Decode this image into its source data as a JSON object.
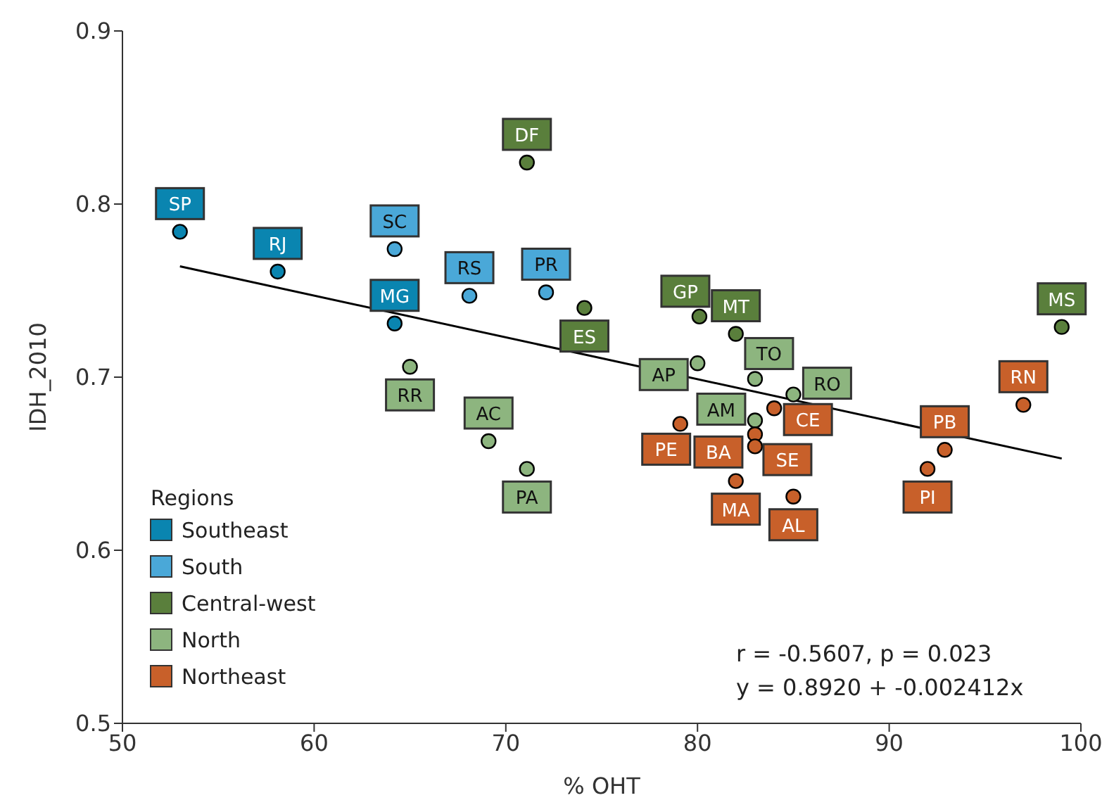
{
  "chart_data": {
    "type": "scatter",
    "xlabel": "% OHT",
    "ylabel": "IDH_2010",
    "legend_title": "Regions",
    "legend": "bottom left",
    "marker": "circle",
    "grid": false,
    "xlim": [
      50,
      100
    ],
    "xticks": [
      50,
      60,
      70,
      80,
      90,
      100
    ],
    "ylim": [
      0.5,
      0.9
    ],
    "yticks": [
      0.5,
      0.6,
      0.7,
      0.8,
      0.9
    ],
    "series": [
      {
        "name": "Southeast",
        "color": "#0a85b0",
        "x": [
          53,
          58.1,
          64.2
        ],
        "values": [
          0.784,
          0.761,
          0.731
        ],
        "value_labels": [
          "SP",
          "RJ",
          "MG"
        ]
      },
      {
        "name": "South",
        "color": "#4aa8d8",
        "x": [
          64.2,
          68.1,
          72.1
        ],
        "values": [
          0.774,
          0.747,
          0.749
        ],
        "value_labels": [
          "SC",
          "RS",
          "PR"
        ]
      },
      {
        "name": "Central-west",
        "color": "#5a7f3c",
        "x": [
          71.1,
          74.1,
          80.1,
          82,
          99
        ],
        "values": [
          0.824,
          0.74,
          0.735,
          0.725,
          0.729
        ],
        "value_labels": [
          "DF",
          "ES",
          "GP",
          "MT",
          "MS"
        ]
      },
      {
        "name": "North",
        "color": "#8db57f",
        "x": [
          65,
          69.1,
          71.1,
          80,
          83,
          83,
          85
        ],
        "values": [
          0.706,
          0.663,
          0.647,
          0.708,
          0.675,
          0.699,
          0.69
        ],
        "value_labels": [
          "RR",
          "AC",
          "PA",
          "AP",
          "AM",
          "TO",
          "RO"
        ]
      },
      {
        "name": "Northeast",
        "color": "#c8602a",
        "x": [
          79.1,
          83,
          83,
          84,
          82,
          85,
          92,
          92.9,
          97
        ],
        "values": [
          0.673,
          0.667,
          0.66,
          0.682,
          0.64,
          0.631,
          0.647,
          0.658,
          0.684
        ],
        "value_labels": [
          "PE",
          "SE",
          "BA",
          "CE",
          "MA",
          "AL",
          "PI",
          "PB",
          "RN"
        ]
      },
      {
        "type": "line",
        "color": "#000000",
        "marker": "none",
        "x": [
          53,
          99
        ],
        "values": [
          0.764,
          0.653
        ]
      }
    ],
    "annotations": [
      "r = -0.5607, p = 0.023",
      "y = 0.8920 + -0.002412x"
    ]
  }
}
